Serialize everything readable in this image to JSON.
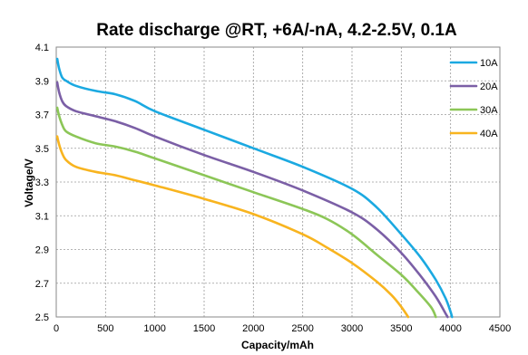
{
  "chart_data": {
    "type": "line",
    "title": "Rate discharge @RT, +6A/-nA, 4.2-2.5V, 0.1A",
    "xlabel": "Capacity/mAh",
    "ylabel": "Voltage/V",
    "xlim": [
      0,
      4500
    ],
    "ylim": [
      2.5,
      4.1
    ],
    "xticks": [
      "0",
      "500",
      "1000",
      "1500",
      "2000",
      "2500",
      "3000",
      "3500",
      "4000",
      "4500"
    ],
    "yticks": [
      "2.5",
      "2.7",
      "2.9",
      "3.1",
      "3.3",
      "3.5",
      "3.7",
      "3.9",
      "4.1"
    ],
    "grid": true,
    "legend_position": "top-right",
    "series": [
      {
        "name": "10A",
        "color": "#1ba9e1",
        "points": [
          [
            10,
            4.03
          ],
          [
            30,
            3.97
          ],
          [
            60,
            3.92
          ],
          [
            100,
            3.9
          ],
          [
            200,
            3.87
          ],
          [
            400,
            3.84
          ],
          [
            600,
            3.82
          ],
          [
            800,
            3.78
          ],
          [
            1000,
            3.72
          ],
          [
            1500,
            3.61
          ],
          [
            2000,
            3.5
          ],
          [
            2500,
            3.39
          ],
          [
            3000,
            3.26
          ],
          [
            3250,
            3.15
          ],
          [
            3500,
            2.99
          ],
          [
            3700,
            2.85
          ],
          [
            3850,
            2.72
          ],
          [
            3950,
            2.61
          ],
          [
            4000,
            2.53
          ],
          [
            4015,
            2.5
          ]
        ]
      },
      {
        "name": "20A",
        "color": "#7b5fa6",
        "points": [
          [
            10,
            3.89
          ],
          [
            30,
            3.83
          ],
          [
            60,
            3.78
          ],
          [
            100,
            3.75
          ],
          [
            200,
            3.72
          ],
          [
            400,
            3.69
          ],
          [
            600,
            3.66
          ],
          [
            800,
            3.62
          ],
          [
            1000,
            3.57
          ],
          [
            1500,
            3.46
          ],
          [
            2000,
            3.36
          ],
          [
            2500,
            3.25
          ],
          [
            3000,
            3.12
          ],
          [
            3250,
            3.02
          ],
          [
            3500,
            2.88
          ],
          [
            3700,
            2.74
          ],
          [
            3850,
            2.62
          ],
          [
            3950,
            2.52
          ],
          [
            3970,
            2.5
          ]
        ]
      },
      {
        "name": "30A",
        "color": "#8cc657",
        "points": [
          [
            10,
            3.74
          ],
          [
            30,
            3.69
          ],
          [
            60,
            3.64
          ],
          [
            100,
            3.6
          ],
          [
            200,
            3.57
          ],
          [
            400,
            3.53
          ],
          [
            600,
            3.51
          ],
          [
            800,
            3.48
          ],
          [
            1000,
            3.44
          ],
          [
            1500,
            3.34
          ],
          [
            2000,
            3.24
          ],
          [
            2500,
            3.14
          ],
          [
            2750,
            3.08
          ],
          [
            3000,
            2.99
          ],
          [
            3250,
            2.87
          ],
          [
            3500,
            2.75
          ],
          [
            3650,
            2.66
          ],
          [
            3800,
            2.56
          ],
          [
            3850,
            2.5
          ]
        ]
      },
      {
        "name": "40A",
        "color": "#f8b41f",
        "points": [
          [
            10,
            3.57
          ],
          [
            30,
            3.52
          ],
          [
            60,
            3.47
          ],
          [
            100,
            3.43
          ],
          [
            200,
            3.39
          ],
          [
            400,
            3.36
          ],
          [
            600,
            3.34
          ],
          [
            800,
            3.31
          ],
          [
            1000,
            3.28
          ],
          [
            1500,
            3.2
          ],
          [
            2000,
            3.11
          ],
          [
            2500,
            2.99
          ],
          [
            2750,
            2.91
          ],
          [
            3000,
            2.82
          ],
          [
            3250,
            2.71
          ],
          [
            3400,
            2.63
          ],
          [
            3500,
            2.56
          ],
          [
            3570,
            2.5
          ]
        ]
      }
    ]
  }
}
